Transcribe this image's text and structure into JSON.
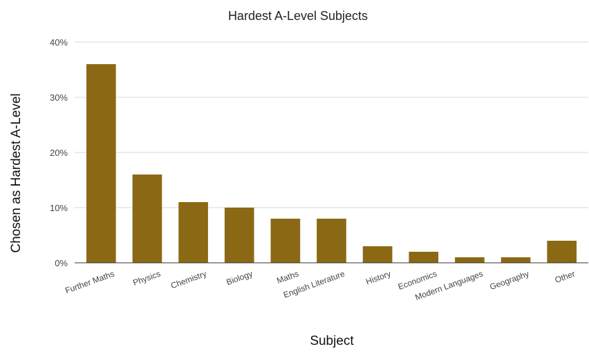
{
  "chart_data": {
    "type": "bar",
    "title": "Hardest A-Level Subjects",
    "xlabel": "Subject",
    "ylabel": "Chosen as Hardest  A-Level",
    "categories": [
      "Further Maths",
      "Physics",
      "Chemistry",
      "Biology",
      "Maths",
      "English Literature",
      "History",
      "Economics",
      "Modern Languages",
      "Geography",
      "Other"
    ],
    "values": [
      36,
      16,
      11,
      10,
      8,
      8,
      3,
      2,
      1,
      1,
      4
    ],
    "ylim": [
      0,
      40
    ],
    "yticks": [
      0,
      10,
      20,
      30,
      40
    ],
    "ytick_labels": [
      "0%",
      "10%",
      "20%",
      "30%",
      "40%"
    ],
    "grid": true,
    "legend": "none",
    "bar_color": "#8b6914"
  }
}
